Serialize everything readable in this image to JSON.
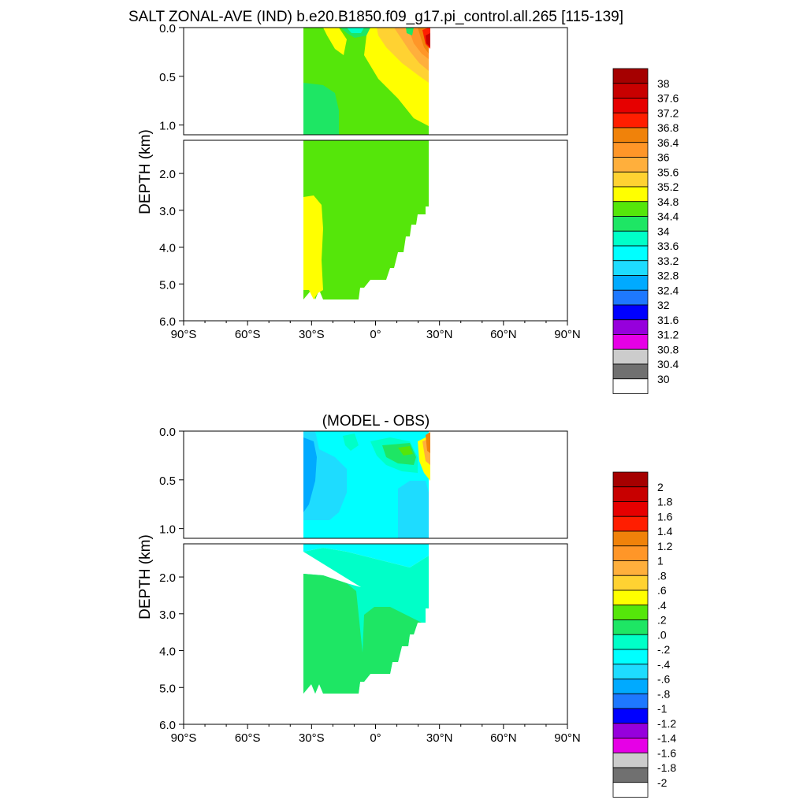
{
  "title": "SALT ZONAL-AVE (IND) b.e20.B1850.f09_g17.pi_control.all.265 [115-139]",
  "chart_data": [
    {
      "type": "contour",
      "panel": "top",
      "title": "",
      "ylabel": "DEPTH (km)",
      "xlabel": "",
      "x_ticks": [
        "90°S",
        "60°S",
        "30°S",
        "0°",
        "30°N",
        "60°N",
        "90°N"
      ],
      "x_tick_values": [
        -90,
        -60,
        -30,
        0,
        30,
        60,
        90
      ],
      "upper_y_ticks": [
        "0.0",
        "0.5",
        "1.0"
      ],
      "upper_y_tick_values": [
        0.0,
        0.5,
        1.0
      ],
      "lower_y_ticks": [
        "2.0",
        "3.0",
        "4.0",
        "5.0",
        "6.0"
      ],
      "lower_y_tick_values": [
        2.0,
        3.0,
        4.0,
        5.0,
        6.0
      ],
      "xlim": [
        -90,
        90
      ],
      "ylim_upper": [
        0.0,
        1.1
      ],
      "ylim_lower": [
        1.1,
        6.0
      ],
      "data_extent_lat": [
        -34,
        25
      ],
      "legend_labels": [
        "38",
        "37.6",
        "37.2",
        "36.8",
        "36.4",
        "36",
        "35.6",
        "35.2",
        "34.8",
        "34.4",
        "34",
        "33.6",
        "33.2",
        "32.8",
        "32.4",
        "32",
        "31.6",
        "31.2",
        "30.8",
        "30.4",
        "30"
      ],
      "legend_colors": [
        "#a50000",
        "#c80000",
        "#e60000",
        "#ff1e00",
        "#f0820a",
        "#ff9628",
        "#ffaf3c",
        "#ffd232",
        "#ffff00",
        "#55e60a",
        "#1ee664",
        "#00ffc8",
        "#00ffff",
        "#1edcff",
        "#00aaff",
        "#1e78ff",
        "#0000ff",
        "#9600dc",
        "#e600e6",
        "#cccccc",
        "#707070",
        "#ffffff"
      ],
      "regions": [
        {
          "value_range": [
            34.4,
            34.8
          ],
          "description": "dominant green water mass from ~1 km to bottom"
        },
        {
          "value_range": [
            34.8,
            35.2
          ],
          "description": "yellow tongue near 30°S at 2.5–5.3 km and upper 0–1 km north of equator"
        },
        {
          "value_range": [
            35.2,
            37.6
          ],
          "description": "high-salinity orange/red surface water near 25°N"
        },
        {
          "value_range": [
            34.0,
            34.8
          ],
          "description": "fresher cyan/green surface water 10°S–0°"
        }
      ]
    },
    {
      "type": "contour",
      "panel": "bottom",
      "title": "(MODEL - OBS)",
      "ylabel": "DEPTH (km)",
      "xlabel": "",
      "x_ticks": [
        "90°S",
        "60°S",
        "30°S",
        "0°",
        "30°N",
        "60°N",
        "90°N"
      ],
      "x_tick_values": [
        -90,
        -60,
        -30,
        0,
        30,
        60,
        90
      ],
      "upper_y_ticks": [
        "0.0",
        "0.5",
        "1.0"
      ],
      "upper_y_tick_values": [
        0.0,
        0.5,
        1.0
      ],
      "lower_y_ticks": [
        "2.0",
        "3.0",
        "4.0",
        "5.0",
        "6.0"
      ],
      "lower_y_tick_values": [
        2.0,
        3.0,
        4.0,
        5.0,
        6.0
      ],
      "xlim": [
        -90,
        90
      ],
      "ylim_upper": [
        0.0,
        1.1
      ],
      "ylim_lower": [
        1.1,
        6.0
      ],
      "data_extent_lat": [
        -34,
        25
      ],
      "legend_labels": [
        "2",
        "1.8",
        "1.6",
        "1.4",
        "1.2",
        "1",
        ".8",
        ".6",
        ".4",
        ".2",
        ".0",
        "-.2",
        "-.4",
        "-.6",
        "-.8",
        "-1",
        "-1.2",
        "-1.4",
        "-1.6",
        "-1.8",
        "-2"
      ],
      "legend_colors": [
        "#a50000",
        "#c80000",
        "#e60000",
        "#ff1e00",
        "#f0820a",
        "#ff9628",
        "#ffaf3c",
        "#ffd232",
        "#ffff00",
        "#55e60a",
        "#1ee664",
        "#00ffc8",
        "#00ffff",
        "#1edcff",
        "#00aaff",
        "#1e78ff",
        "#0000ff",
        "#9600dc",
        "#e600e6",
        "#cccccc",
        "#707070",
        "#ffffff"
      ],
      "regions": [
        {
          "value_range": [
            -0.4,
            -0.2
          ],
          "description": "fresh bias through upper 1 km"
        },
        {
          "value_range": [
            -0.8,
            -0.4
          ],
          "description": "stronger fresh bias near 30°S, 0.1–0.8 km"
        },
        {
          "value_range": [
            0.0,
            0.2
          ],
          "description": "slight salty bias in deep water below ~2 km"
        },
        {
          "value_range": [
            -0.2,
            0.0
          ],
          "description": "near-zero bias 1.2–3 km"
        },
        {
          "value_range": [
            0.2,
            1.4
          ],
          "description": "salty bias in surface water near 25°N"
        }
      ]
    }
  ]
}
